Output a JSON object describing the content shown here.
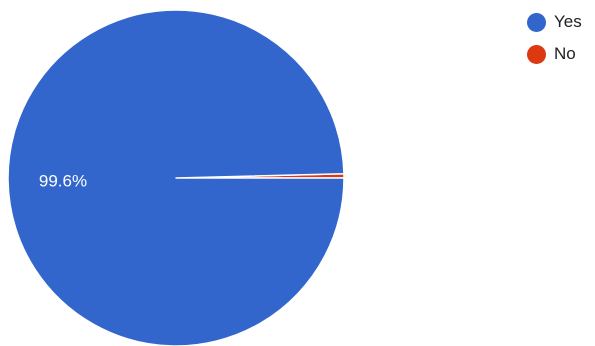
{
  "chart_data": {
    "type": "pie",
    "categories": [
      "Yes",
      "No"
    ],
    "values": [
      99.6,
      0.4
    ],
    "colors": [
      "#3366cc",
      "#dc3912"
    ],
    "data_labels": [
      "99.6%",
      ""
    ],
    "legend_position": "top-right",
    "title": ""
  },
  "legend": {
    "items": [
      {
        "label": "Yes",
        "color": "#3366cc"
      },
      {
        "label": "No",
        "color": "#dc3912"
      }
    ]
  }
}
